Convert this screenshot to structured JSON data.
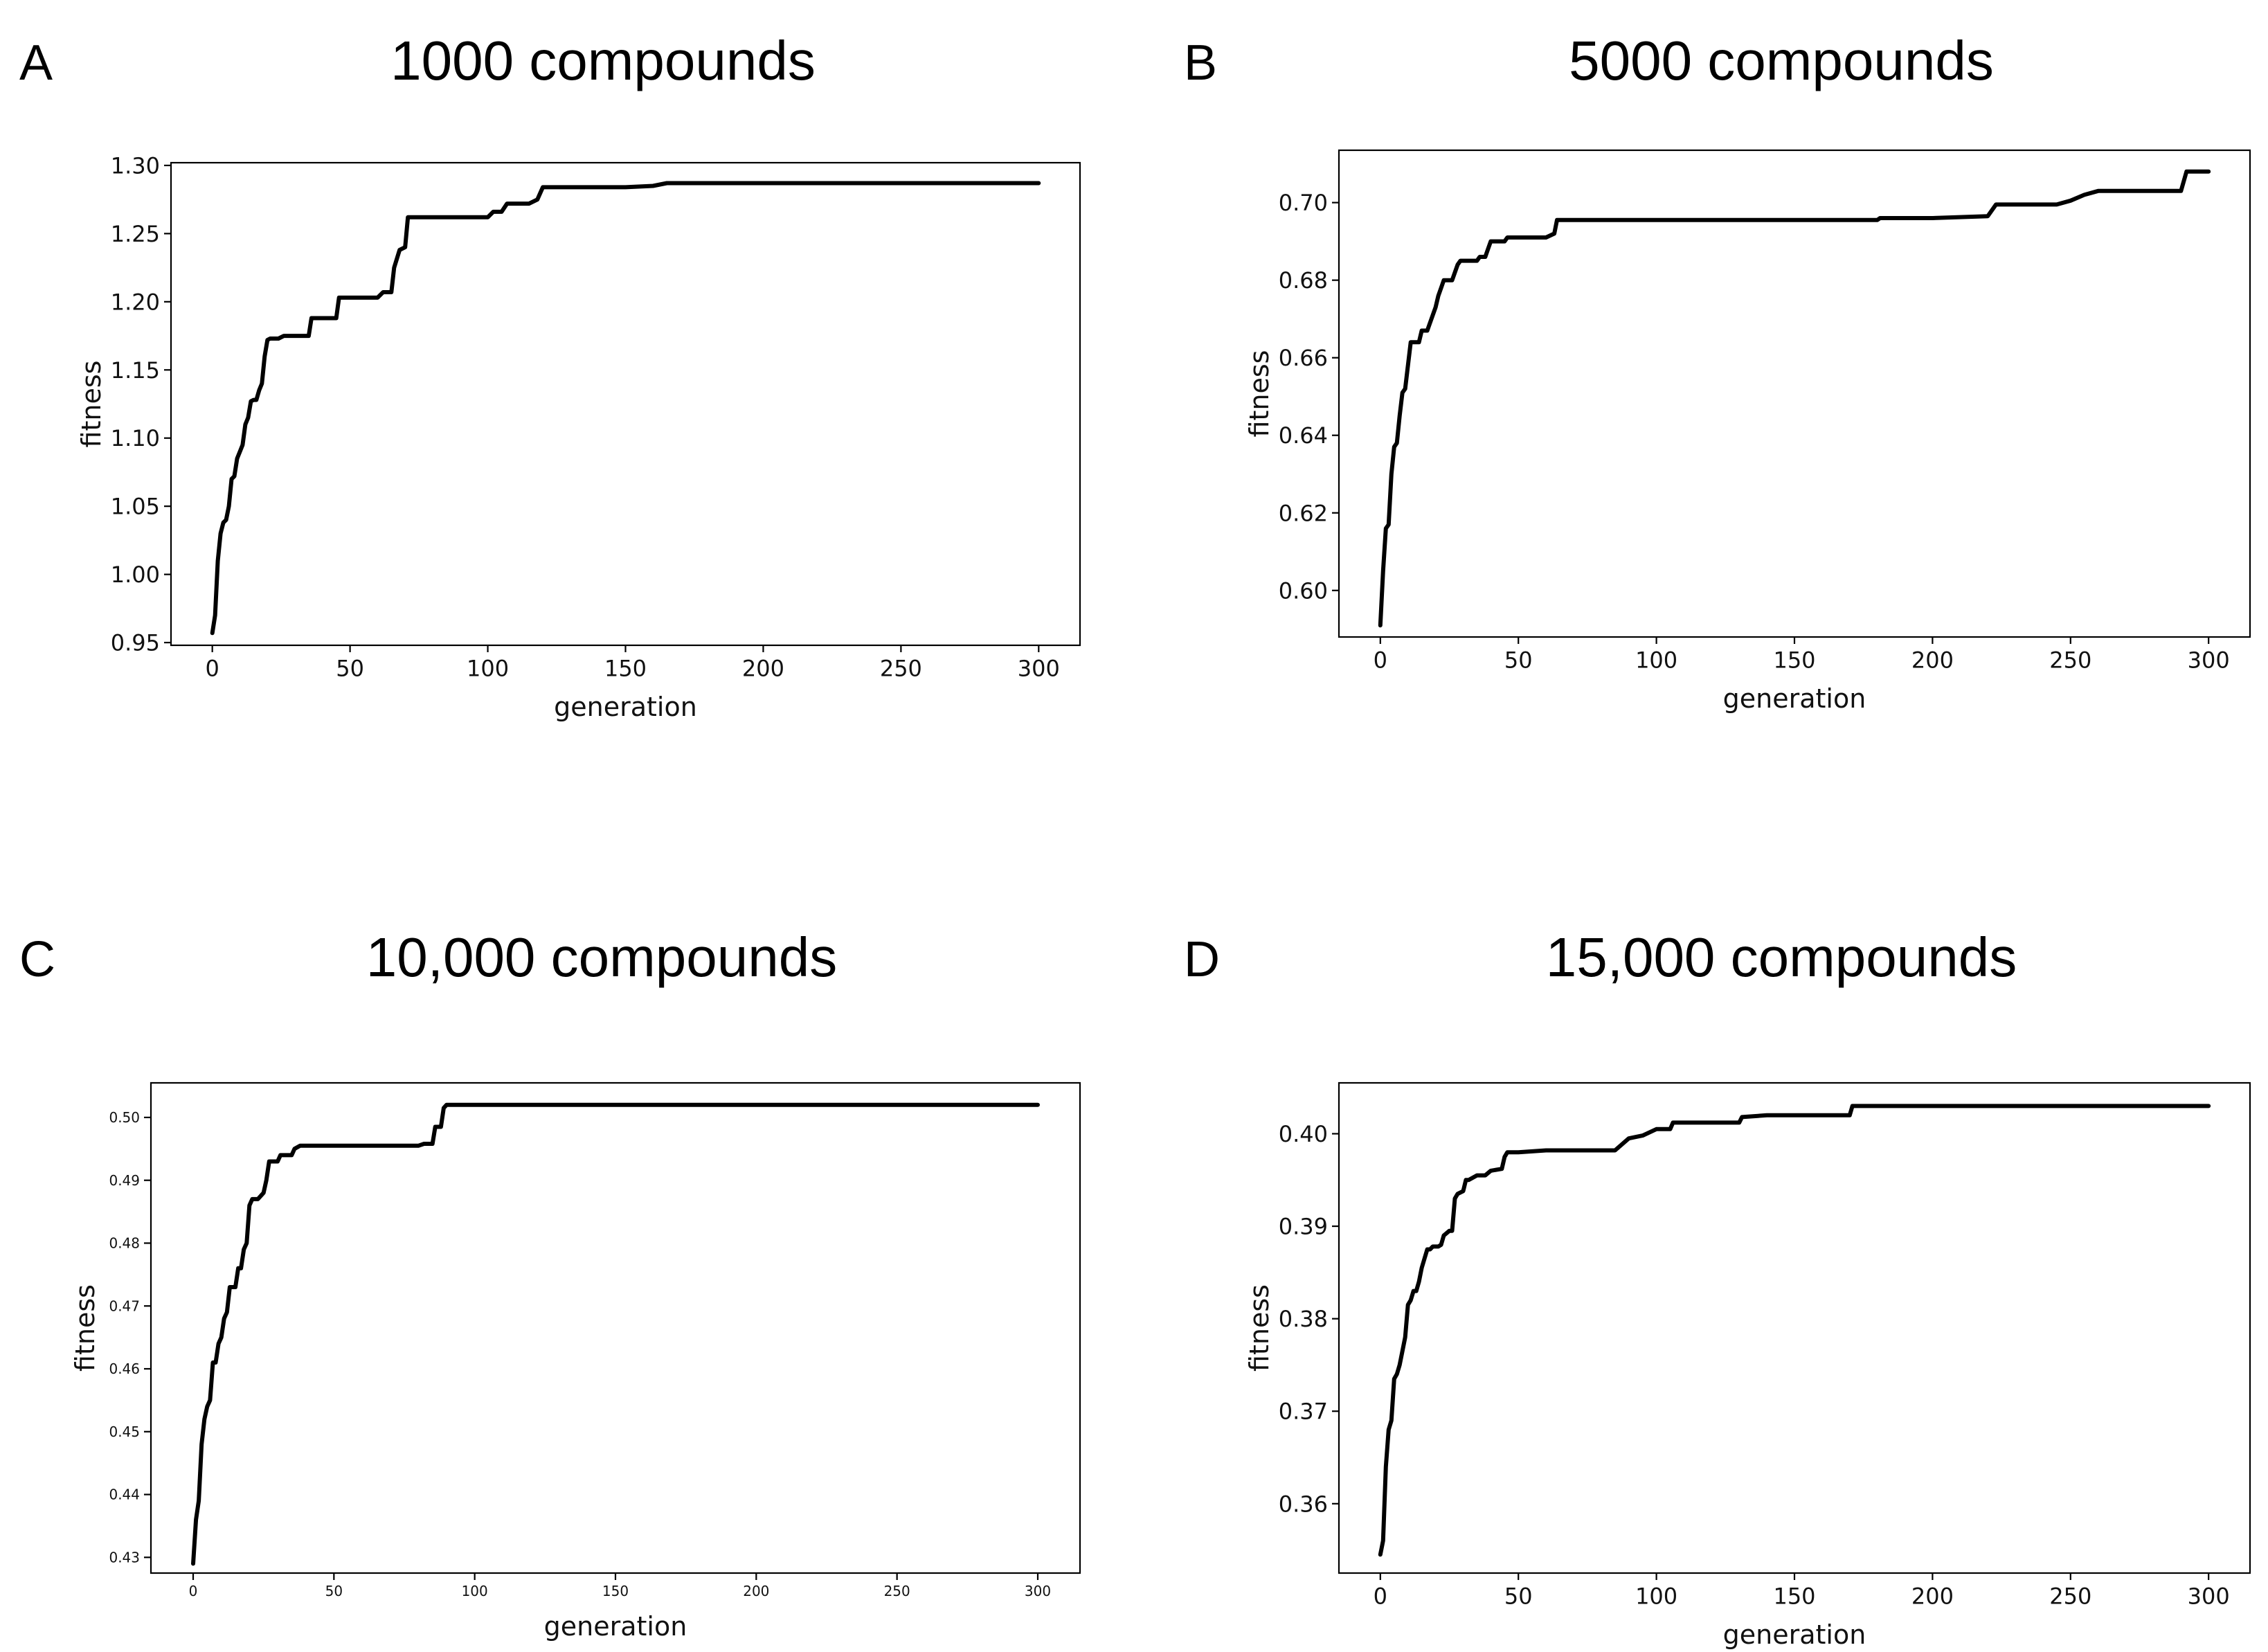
{
  "chart_data": [
    {
      "panel_label": "A",
      "title": "1000 compounds",
      "type": "line",
      "xlabel": "generation",
      "ylabel": "fitness",
      "xlim": [
        -15,
        315
      ],
      "ylim": [
        0.948,
        1.302
      ],
      "xticks": [
        0,
        50,
        100,
        150,
        200,
        250,
        300
      ],
      "yticks": [
        0.95,
        1.0,
        1.05,
        1.1,
        1.15,
        1.2,
        1.25,
        1.3
      ],
      "ytick_decimals": 2,
      "grid": false,
      "series": [
        {
          "x": [
            0,
            1,
            2,
            3,
            4,
            5,
            6,
            7,
            8,
            9,
            10,
            11,
            12,
            13,
            14,
            15,
            16,
            17,
            18,
            19,
            20,
            21,
            24,
            26,
            30,
            35,
            36,
            40,
            45,
            46,
            60,
            62,
            65,
            66,
            68,
            70,
            71,
            100,
            102,
            105,
            107,
            115,
            118,
            120,
            150,
            160,
            165,
            200,
            250,
            300
          ],
          "y": [
            0.957,
            0.97,
            1.01,
            1.03,
            1.038,
            1.04,
            1.05,
            1.07,
            1.072,
            1.085,
            1.09,
            1.095,
            1.11,
            1.115,
            1.127,
            1.128,
            1.128,
            1.135,
            1.14,
            1.16,
            1.172,
            1.173,
            1.173,
            1.175,
            1.175,
            1.175,
            1.188,
            1.188,
            1.188,
            1.203,
            1.203,
            1.207,
            1.207,
            1.225,
            1.238,
            1.24,
            1.262,
            1.262,
            1.266,
            1.266,
            1.272,
            1.272,
            1.275,
            1.284,
            1.284,
            1.285,
            1.287,
            1.287,
            1.287,
            1.287
          ]
        }
      ]
    },
    {
      "panel_label": "B",
      "title": "5000 compounds",
      "type": "line",
      "xlabel": "generation",
      "ylabel": "fitness",
      "xlim": [
        -15,
        315
      ],
      "ylim": [
        0.588,
        0.7135
      ],
      "xticks": [
        0,
        50,
        100,
        150,
        200,
        250,
        300
      ],
      "yticks": [
        0.6,
        0.62,
        0.64,
        0.66,
        0.68,
        0.7
      ],
      "ytick_decimals": 2,
      "grid": false,
      "series": [
        {
          "x": [
            0,
            1,
            2,
            3,
            4,
            5,
            6,
            7,
            8,
            9,
            10,
            11,
            12,
            14,
            15,
            17,
            18,
            20,
            21,
            22,
            23,
            24,
            25,
            26,
            28,
            29,
            30,
            35,
            36,
            38,
            39,
            40,
            45,
            46,
            50,
            60,
            63,
            64,
            100,
            150,
            180,
            181,
            200,
            220,
            223,
            245,
            250,
            255,
            260,
            280,
            290,
            292,
            300
          ],
          "y": [
            0.591,
            0.605,
            0.616,
            0.617,
            0.63,
            0.637,
            0.638,
            0.645,
            0.651,
            0.652,
            0.658,
            0.664,
            0.664,
            0.664,
            0.667,
            0.667,
            0.669,
            0.673,
            0.676,
            0.678,
            0.68,
            0.68,
            0.68,
            0.68,
            0.684,
            0.685,
            0.685,
            0.685,
            0.686,
            0.686,
            0.688,
            0.69,
            0.69,
            0.691,
            0.691,
            0.691,
            0.692,
            0.6955,
            0.6955,
            0.6955,
            0.6955,
            0.696,
            0.696,
            0.6965,
            0.6995,
            0.6995,
            0.7005,
            0.702,
            0.703,
            0.703,
            0.703,
            0.708,
            0.708
          ]
        }
      ]
    },
    {
      "panel_label": "C",
      "title": "10,000 compounds",
      "type": "line",
      "xlabel": "generation",
      "ylabel": "fitness",
      "xlim": [
        -15,
        315
      ],
      "ylim": [
        0.4275,
        0.5055
      ],
      "xticks": [
        0,
        50,
        100,
        150,
        200,
        250,
        300
      ],
      "yticks": [
        0.43,
        0.44,
        0.45,
        0.46,
        0.47,
        0.48,
        0.49,
        0.5
      ],
      "ytick_decimals": 2,
      "grid": false,
      "series": [
        {
          "x": [
            0,
            1,
            2,
            3,
            4,
            5,
            6,
            7,
            8,
            9,
            10,
            11,
            12,
            13,
            14,
            15,
            16,
            17,
            18,
            19,
            20,
            21,
            22,
            23,
            25,
            26,
            27,
            28,
            30,
            31,
            32,
            35,
            36,
            38,
            40,
            50,
            60,
            80,
            82,
            85,
            86,
            88,
            89,
            90,
            100,
            150,
            200,
            250,
            300
          ],
          "y": [
            0.429,
            0.436,
            0.439,
            0.448,
            0.452,
            0.454,
            0.455,
            0.461,
            0.461,
            0.464,
            0.465,
            0.468,
            0.469,
            0.473,
            0.473,
            0.473,
            0.476,
            0.476,
            0.479,
            0.48,
            0.486,
            0.487,
            0.487,
            0.487,
            0.488,
            0.49,
            0.493,
            0.493,
            0.493,
            0.494,
            0.494,
            0.494,
            0.495,
            0.4955,
            0.4955,
            0.4955,
            0.4955,
            0.4955,
            0.4958,
            0.4958,
            0.4985,
            0.4985,
            0.5015,
            0.502,
            0.502,
            0.502,
            0.502,
            0.502,
            0.502
          ]
        }
      ]
    },
    {
      "panel_label": "D",
      "title": "15,000 compounds",
      "type": "line",
      "xlabel": "generation",
      "ylabel": "fitness",
      "xlim": [
        -15,
        315
      ],
      "ylim": [
        0.3525,
        0.4055
      ],
      "xticks": [
        0,
        50,
        100,
        150,
        200,
        250,
        300
      ],
      "yticks": [
        0.36,
        0.37,
        0.38,
        0.39,
        0.4
      ],
      "ytick_decimals": 2,
      "grid": false,
      "series": [
        {
          "x": [
            0,
            1,
            2,
            3,
            4,
            5,
            6,
            7,
            8,
            9,
            10,
            11,
            12,
            13,
            14,
            15,
            16,
            17,
            18,
            19,
            20,
            21,
            22,
            23,
            25,
            26,
            27,
            28,
            30,
            31,
            32,
            35,
            36,
            38,
            40,
            44,
            45,
            46,
            50,
            60,
            80,
            85,
            90,
            95,
            100,
            105,
            106,
            130,
            131,
            140,
            170,
            171,
            200,
            250,
            300
          ],
          "y": [
            0.3545,
            0.356,
            0.364,
            0.368,
            0.369,
            0.3735,
            0.374,
            0.375,
            0.3765,
            0.378,
            0.3815,
            0.382,
            0.383,
            0.383,
            0.384,
            0.3855,
            0.3865,
            0.3875,
            0.3875,
            0.3878,
            0.3878,
            0.3878,
            0.388,
            0.389,
            0.3895,
            0.3895,
            0.393,
            0.3935,
            0.3938,
            0.395,
            0.395,
            0.3955,
            0.3955,
            0.3955,
            0.396,
            0.3962,
            0.3975,
            0.398,
            0.398,
            0.3982,
            0.3982,
            0.3982,
            0.3995,
            0.3998,
            0.4005,
            0.4005,
            0.4012,
            0.4012,
            0.4018,
            0.402,
            0.402,
            0.403,
            0.403,
            0.403,
            0.403
          ]
        }
      ]
    }
  ]
}
